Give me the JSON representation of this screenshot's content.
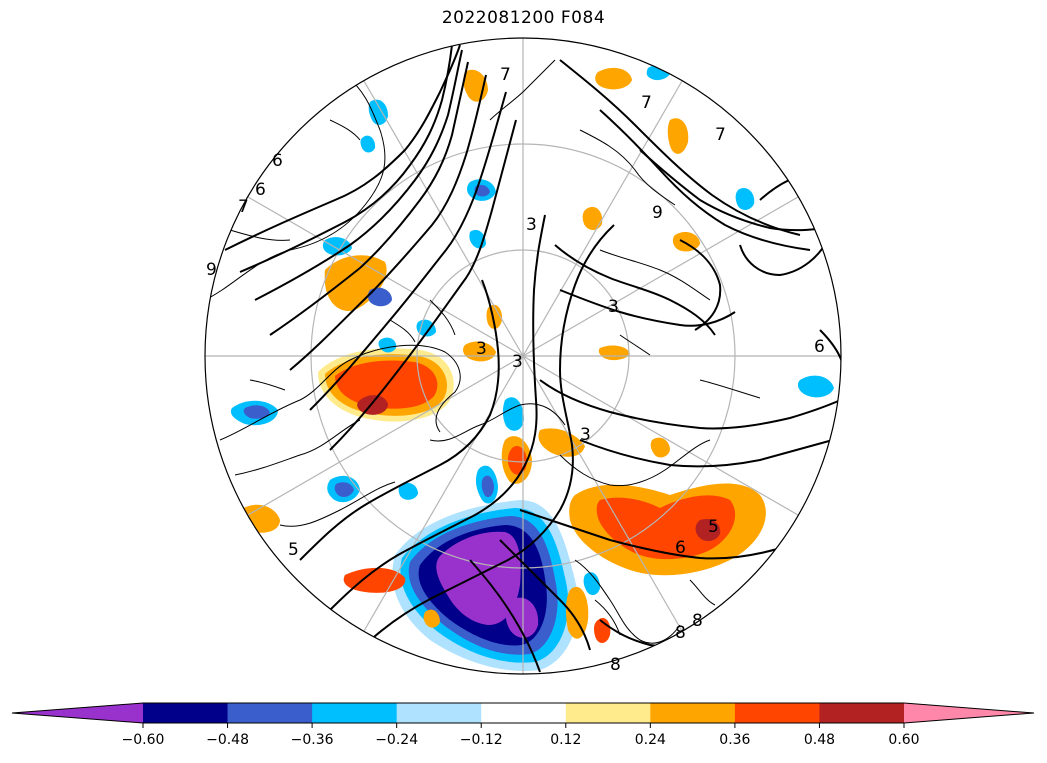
{
  "title": "2022081200 F084",
  "colorbar": {
    "under_color": "#9932cc",
    "over_color": "#ff88aa",
    "bins": [
      {
        "from": -0.6,
        "to": -0.48,
        "color": "#00008b"
      },
      {
        "from": -0.48,
        "to": -0.36,
        "color": "#3a5fcd"
      },
      {
        "from": -0.36,
        "to": -0.24,
        "color": "#00bfff"
      },
      {
        "from": -0.24,
        "to": -0.12,
        "color": "#aee2ff"
      },
      {
        "from": -0.12,
        "to": 0.12,
        "color": "#ffffff"
      },
      {
        "from": 0.12,
        "to": 0.24,
        "color": "#ffeb8c"
      },
      {
        "from": 0.24,
        "to": 0.36,
        "color": "#ffa500"
      },
      {
        "from": 0.36,
        "to": 0.48,
        "color": "#ff4500"
      },
      {
        "from": 0.48,
        "to": 0.6,
        "color": "#b22222"
      }
    ],
    "tick_labels": [
      "−0.60",
      "−0.48",
      "−0.36",
      "−0.24",
      "−0.12",
      "0.12",
      "0.24",
      "0.36",
      "0.48",
      "0.60"
    ]
  },
  "contour_labels": [
    {
      "text": "7"
    },
    {
      "text": "7"
    },
    {
      "text": "7"
    },
    {
      "text": "6"
    },
    {
      "text": "6"
    },
    {
      "text": "7"
    },
    {
      "text": "9"
    },
    {
      "text": "9"
    },
    {
      "text": "3"
    },
    {
      "text": "3"
    },
    {
      "text": "3"
    },
    {
      "text": "3"
    },
    {
      "text": "6"
    },
    {
      "text": "5"
    },
    {
      "text": "5"
    },
    {
      "text": "8"
    },
    {
      "text": "8"
    },
    {
      "text": "8"
    },
    {
      "text": "6"
    },
    {
      "text": "3"
    }
  ]
}
